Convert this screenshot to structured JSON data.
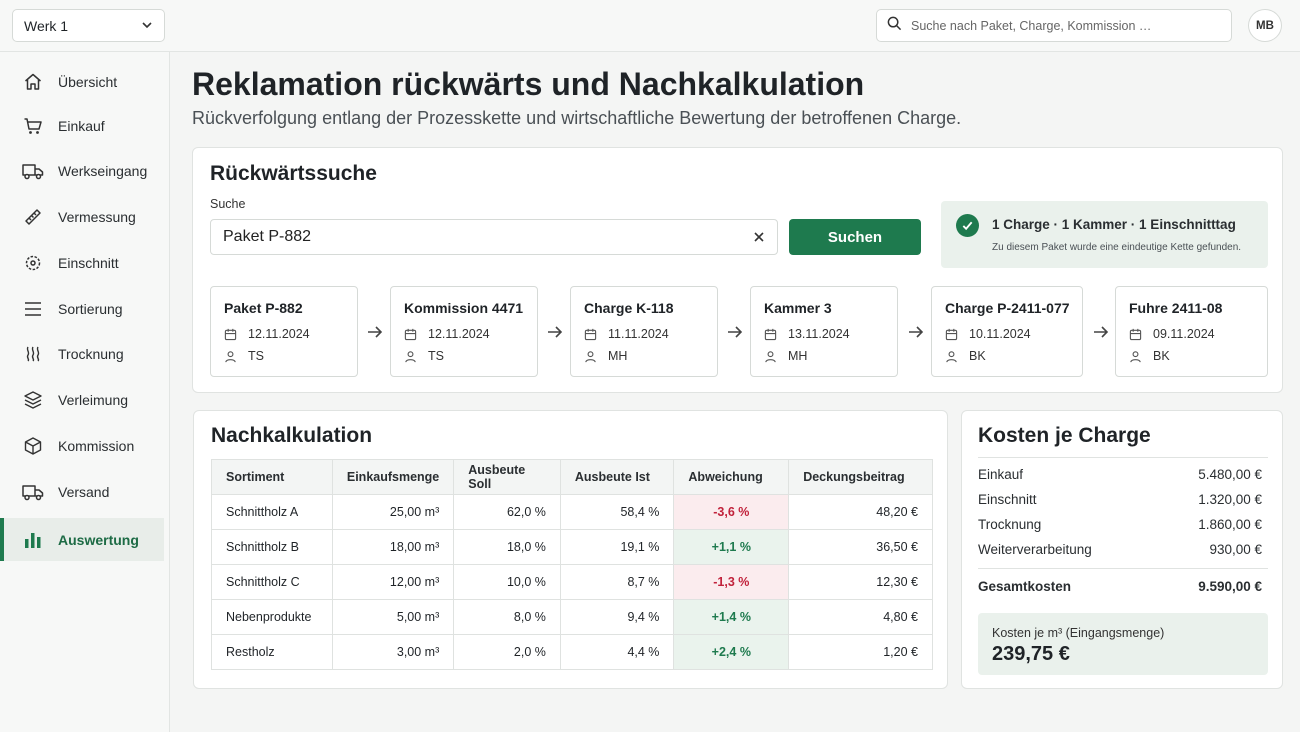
{
  "topbar": {
    "werk_label": "Werk 1",
    "search_placeholder": "Suche nach Paket, Charge, Kommission …",
    "user_initials": "MB"
  },
  "sidebar": {
    "items": [
      {
        "label": "Übersicht",
        "icon": "home-icon"
      },
      {
        "label": "Einkauf",
        "icon": "cart-icon"
      },
      {
        "label": "Werkseingang",
        "icon": "truck-icon"
      },
      {
        "label": "Vermessung",
        "icon": "ruler-icon"
      },
      {
        "label": "Einschnitt",
        "icon": "saw-icon"
      },
      {
        "label": "Sortierung",
        "icon": "list-icon"
      },
      {
        "label": "Trocknung",
        "icon": "heat-icon"
      },
      {
        "label": "Verleimung",
        "icon": "layers-icon"
      },
      {
        "label": "Kommission",
        "icon": "box-icon"
      },
      {
        "label": "Versand",
        "icon": "truck-icon"
      },
      {
        "label": "Auswertung",
        "icon": "bar-chart-icon",
        "active": true
      }
    ]
  },
  "header": {
    "title": "Reklamation rückwärts und Nachkalkulation",
    "subtitle": "Rückverfolgung entlang der Prozesskette und wirtschaftliche Bewertung der betroffenen Charge."
  },
  "search": {
    "title": "Rückwärtssuche",
    "label": "Suche",
    "value": "Paket P-882",
    "button_label": "Suchen",
    "result_main": "1 Charge · 1 Kammer · 1 Einschnitttag",
    "result_sub": "Zu diesem Paket wurde eine eindeutige Kette gefunden."
  },
  "chain": [
    {
      "title": "Paket P-882",
      "date": "12.11.2024",
      "user": "TS"
    },
    {
      "title": "Kommission 4471",
      "date": "12.11.2024",
      "user": "TS"
    },
    {
      "title": "Charge K-118",
      "date": "11.11.2024",
      "user": "MH"
    },
    {
      "title": "Kammer 3",
      "date": "13.11.2024",
      "user": "MH"
    },
    {
      "title": "Charge P-2411-077",
      "date": "10.11.2024",
      "user": "BK"
    },
    {
      "title": "Fuhre 2411-08",
      "date": "09.11.2024",
      "user": "BK"
    }
  ],
  "calc": {
    "title": "Nachkalkulation",
    "columns": [
      "Sortiment",
      "Einkaufsmenge",
      "Ausbeute Soll",
      "Ausbeute Ist",
      "Abweichung",
      "Deckungsbeitrag"
    ],
    "rows": [
      {
        "sortiment": "Schnittholz A",
        "menge": "25,00 m³",
        "soll": "62,0 %",
        "ist": "58,4 %",
        "abw": "-3,6 %",
        "abw_dir": "neg",
        "db": "48,20 €"
      },
      {
        "sortiment": "Schnittholz B",
        "menge": "18,00 m³",
        "soll": "18,0 %",
        "ist": "19,1 %",
        "abw": "+1,1 %",
        "abw_dir": "pos",
        "db": "36,50 €"
      },
      {
        "sortiment": "Schnittholz C",
        "menge": "12,00 m³",
        "soll": "10,0 %",
        "ist": "8,7 %",
        "abw": "-1,3 %",
        "abw_dir": "neg",
        "db": "12,30 €"
      },
      {
        "sortiment": "Nebenprodukte",
        "menge": "5,00 m³",
        "soll": "8,0 %",
        "ist": "9,4 %",
        "abw": "+1,4 %",
        "abw_dir": "pos",
        "db": "4,80 €"
      },
      {
        "sortiment": "Restholz",
        "menge": "3,00 m³",
        "soll": "2,0 %",
        "ist": "4,4 %",
        "abw": "+2,4 %",
        "abw_dir": "pos",
        "db": "1,20 €"
      }
    ]
  },
  "costs": {
    "title": "Kosten je Charge",
    "items": [
      {
        "label": "Einkauf",
        "value": "5.480,00 €"
      },
      {
        "label": "Einschnitt",
        "value": "1.320,00 €"
      },
      {
        "label": "Trocknung",
        "value": "1.860,00 €"
      },
      {
        "label": "Weiterverarbeitung",
        "value": "930,00 €"
      }
    ],
    "total_label": "Gesamtkosten",
    "total_value": "9.590,00 €",
    "per_m3_label": "Kosten je m³ (Eingangsmenge)",
    "per_m3_value": "239,75 €"
  },
  "colors": {
    "accent": "#1e7a4e",
    "negative": "#c1223b",
    "positive_bg": "#eaf3ed",
    "negative_bg": "#fbecee"
  }
}
